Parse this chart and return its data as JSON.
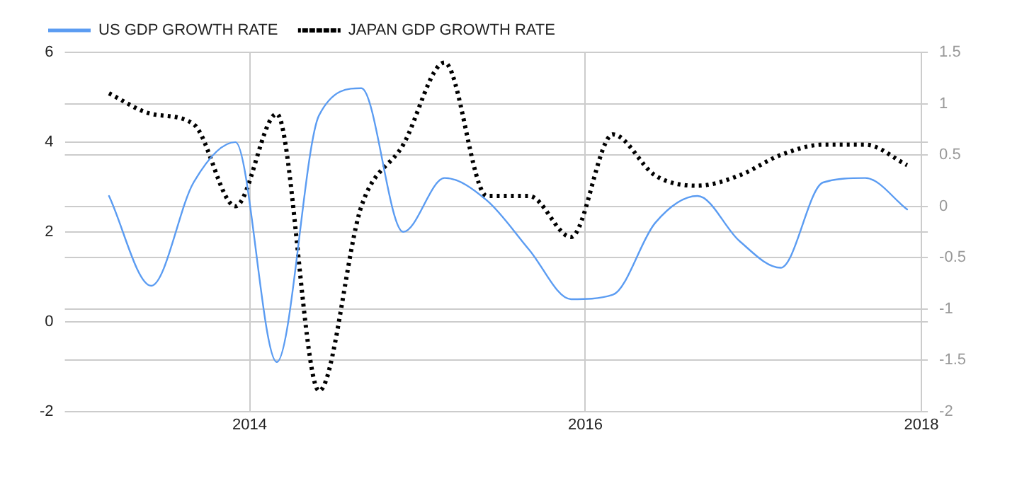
{
  "chart_data": {
    "type": "line",
    "x": [
      "2013-03-01",
      "2013-06-01",
      "2013-09-01",
      "2013-12-01",
      "2014-03-01",
      "2014-06-01",
      "2014-09-01",
      "2014-12-01",
      "2015-03-01",
      "2015-06-01",
      "2015-09-01",
      "2015-12-01",
      "2016-03-01",
      "2016-06-01",
      "2016-09-01",
      "2016-12-01",
      "2017-03-01",
      "2017-06-01",
      "2017-09-01",
      "2017-12-01"
    ],
    "series": [
      {
        "name": "US GDP GROWTH RATE",
        "color": "#5b9cf2",
        "line_style": "solid",
        "values": [
          2.8,
          0.8,
          3.1,
          4.0,
          -0.9,
          4.6,
          5.2,
          2.0,
          3.2,
          2.7,
          1.6,
          0.5,
          0.6,
          2.2,
          2.8,
          1.8,
          1.2,
          3.1,
          3.2,
          2.5
        ]
      },
      {
        "name": "JAPAN GDP GROWTH RATE",
        "color": "#000000",
        "line_style": "dotted",
        "axis": "y2",
        "values": [
          1.1,
          0.9,
          0.8,
          0.0,
          0.9,
          -1.8,
          0.0,
          0.6,
          1.4,
          0.1,
          0.1,
          -0.3,
          0.7,
          0.3,
          0.2,
          0.3,
          0.5,
          0.6,
          0.6,
          0.4
        ]
      }
    ],
    "xlim": [
      "2012-11-25",
      "2018-01-15"
    ],
    "xticks": [
      {
        "value": "2014-01-01",
        "label": "2014"
      },
      {
        "value": "2016-01-01",
        "label": "2016"
      },
      {
        "value": "2018-01-01",
        "label": "2018"
      }
    ],
    "ylim": [
      -2,
      6
    ],
    "yticks": [
      -2,
      0,
      2,
      4,
      6
    ],
    "y2lim": [
      -2,
      1.5
    ],
    "y2ticks": [
      -2,
      -1.5,
      -1,
      -0.5,
      0,
      0.5,
      1,
      1.5
    ],
    "grid": true,
    "legend": "top left",
    "marker": "none"
  }
}
